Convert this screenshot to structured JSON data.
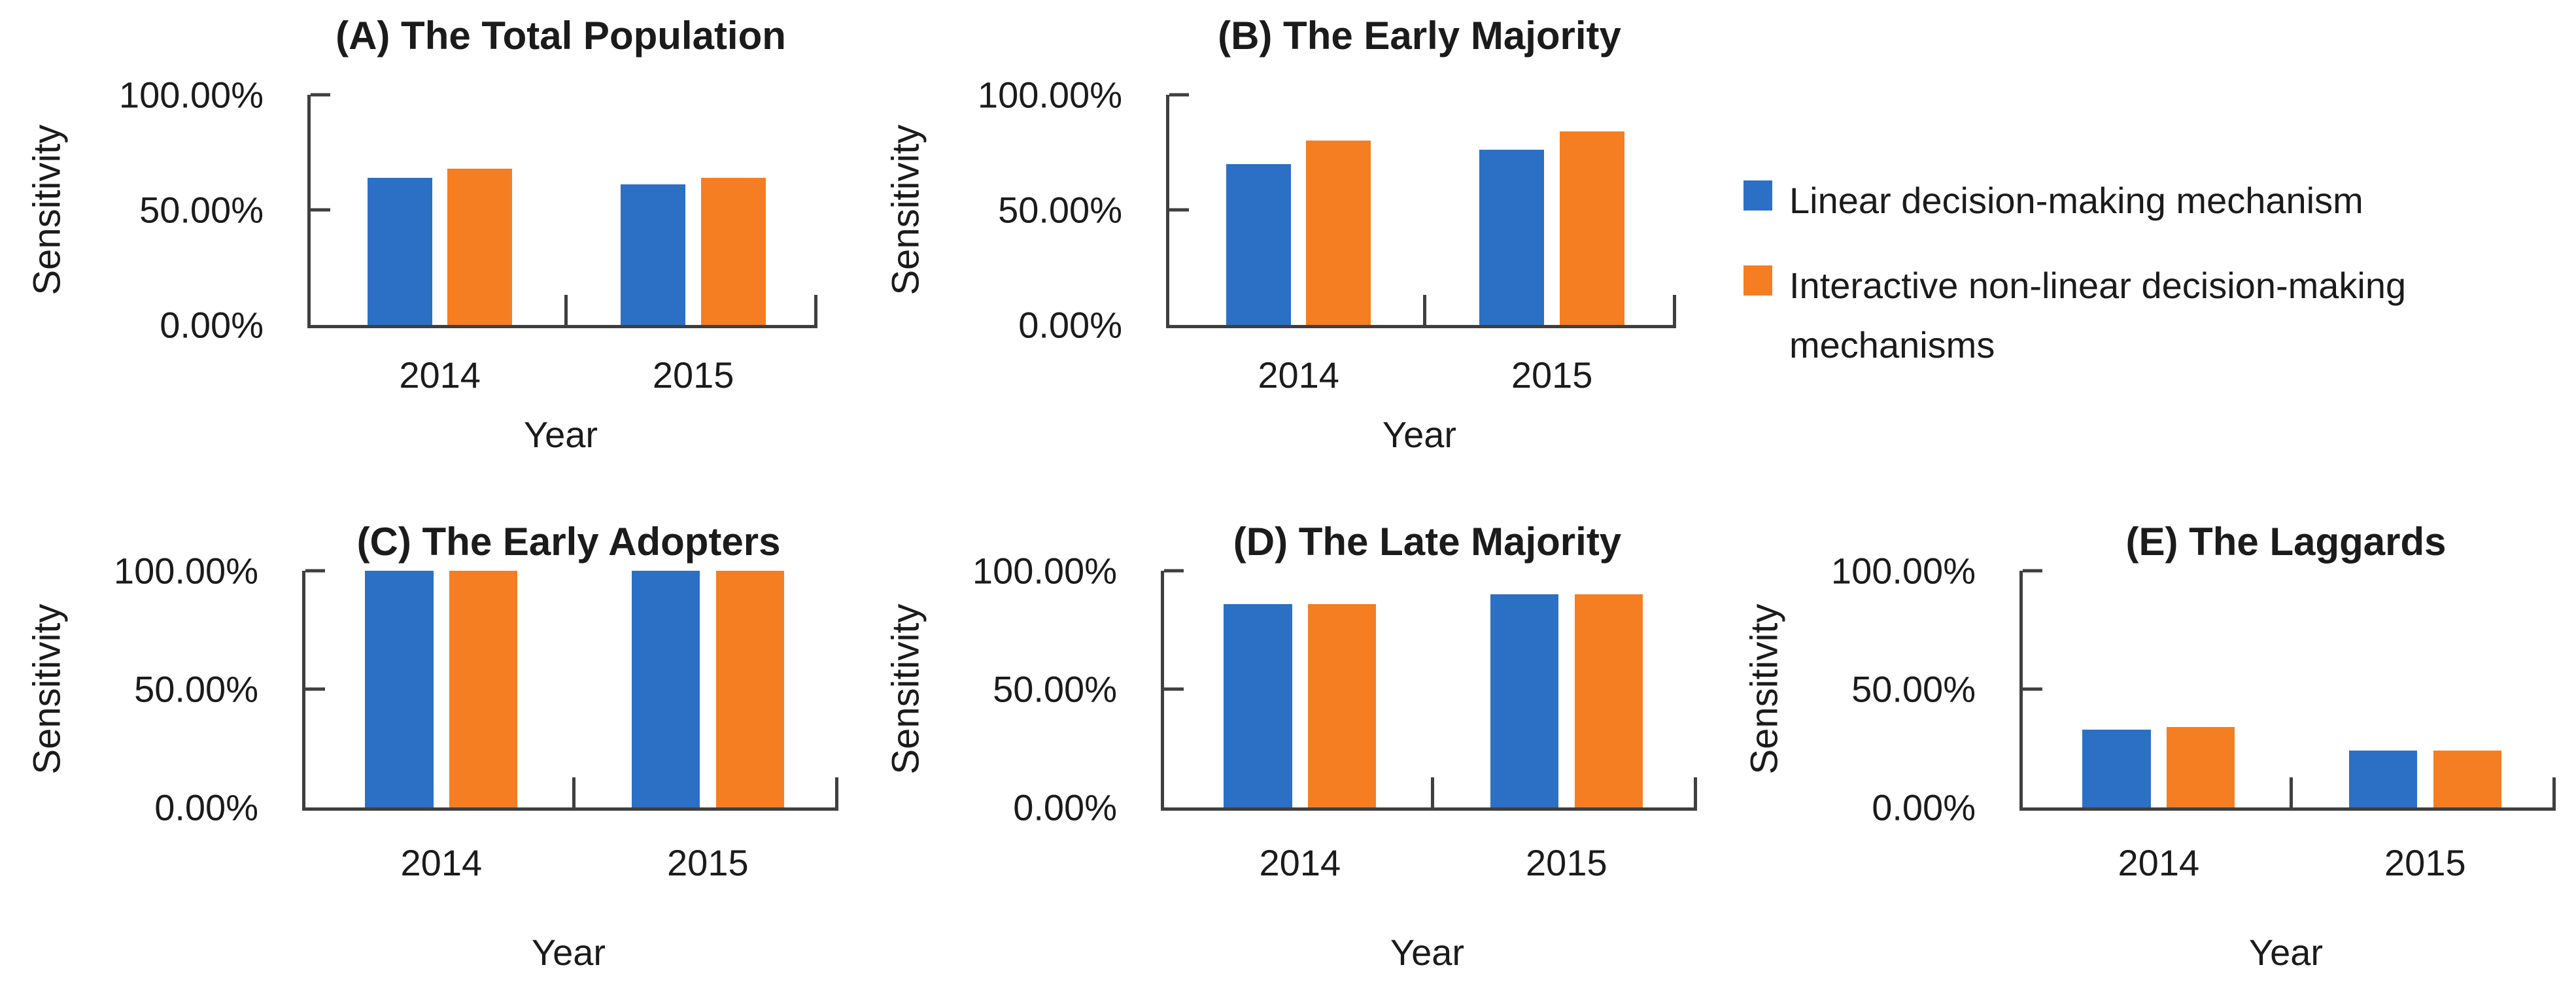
{
  "figure": {
    "background": "#ffffff"
  },
  "colors": {
    "series1": "#2B70C5",
    "series2": "#F57E22",
    "axis": "#3f3f3f",
    "text": "#1b1b1b"
  },
  "legend": {
    "items": [
      {
        "label": "Linear decision-making mechanism",
        "color_key": "series1"
      },
      {
        "label": "Interactive non-linear decision-making mechanisms",
        "color_key": "series2"
      }
    ]
  },
  "chart_data": [
    {
      "type": "bar",
      "title": "(A) The Total Population",
      "xlabel": "Year",
      "ylabel": "Sensitivity",
      "categories": [
        "2014",
        "2015"
      ],
      "y_ticks": [
        "100.00%",
        "50.00%",
        "0.00%"
      ],
      "ylim": [
        0,
        100
      ],
      "grid": false,
      "legend_position": "right-of-row",
      "series": [
        {
          "name": "Linear decision-making mechanism",
          "values": [
            64,
            61
          ]
        },
        {
          "name": "Interactive non-linear decision-making mechanisms",
          "values": [
            68,
            64
          ]
        }
      ]
    },
    {
      "type": "bar",
      "title": "(B) The Early Majority",
      "xlabel": "Year",
      "ylabel": "Sensitivity",
      "categories": [
        "2014",
        "2015"
      ],
      "y_ticks": [
        "100.00%",
        "50.00%",
        "0.00%"
      ],
      "ylim": [
        0,
        100
      ],
      "grid": false,
      "series": [
        {
          "name": "Linear decision-making mechanism",
          "values": [
            70,
            76
          ]
        },
        {
          "name": "Interactive non-linear decision-making mechanisms",
          "values": [
            80,
            84
          ]
        }
      ]
    },
    {
      "type": "bar",
      "title": "(C) The Early Adopters",
      "xlabel": "Year",
      "ylabel": "Sensitivity",
      "categories": [
        "2014",
        "2015"
      ],
      "y_ticks": [
        "100.00%",
        "50.00%",
        "0.00%"
      ],
      "ylim": [
        0,
        100
      ],
      "grid": false,
      "series": [
        {
          "name": "Linear decision-making mechanism",
          "values": [
            100,
            100
          ]
        },
        {
          "name": "Interactive non-linear decision-making mechanisms",
          "values": [
            100,
            100
          ]
        }
      ]
    },
    {
      "type": "bar",
      "title": "(D) The Late Majority",
      "xlabel": "Year",
      "ylabel": "Sensitivity",
      "categories": [
        "2014",
        "2015"
      ],
      "y_ticks": [
        "100.00%",
        "50.00%",
        "0.00%"
      ],
      "ylim": [
        0,
        100
      ],
      "grid": false,
      "series": [
        {
          "name": "Linear decision-making mechanism",
          "values": [
            86,
            90
          ]
        },
        {
          "name": "Interactive non-linear decision-making mechanisms",
          "values": [
            86,
            90
          ]
        }
      ]
    },
    {
      "type": "bar",
      "title": "(E) The Laggards",
      "xlabel": "Year",
      "ylabel": "Sensitivity",
      "categories": [
        "2014",
        "2015"
      ],
      "y_ticks": [
        "100.00%",
        "50.00%",
        "0.00%"
      ],
      "ylim": [
        0,
        100
      ],
      "grid": false,
      "series": [
        {
          "name": "Linear decision-making mechanism",
          "values": [
            33,
            24
          ]
        },
        {
          "name": "Interactive non-linear decision-making mechanisms",
          "values": [
            34,
            24
          ]
        }
      ]
    }
  ]
}
